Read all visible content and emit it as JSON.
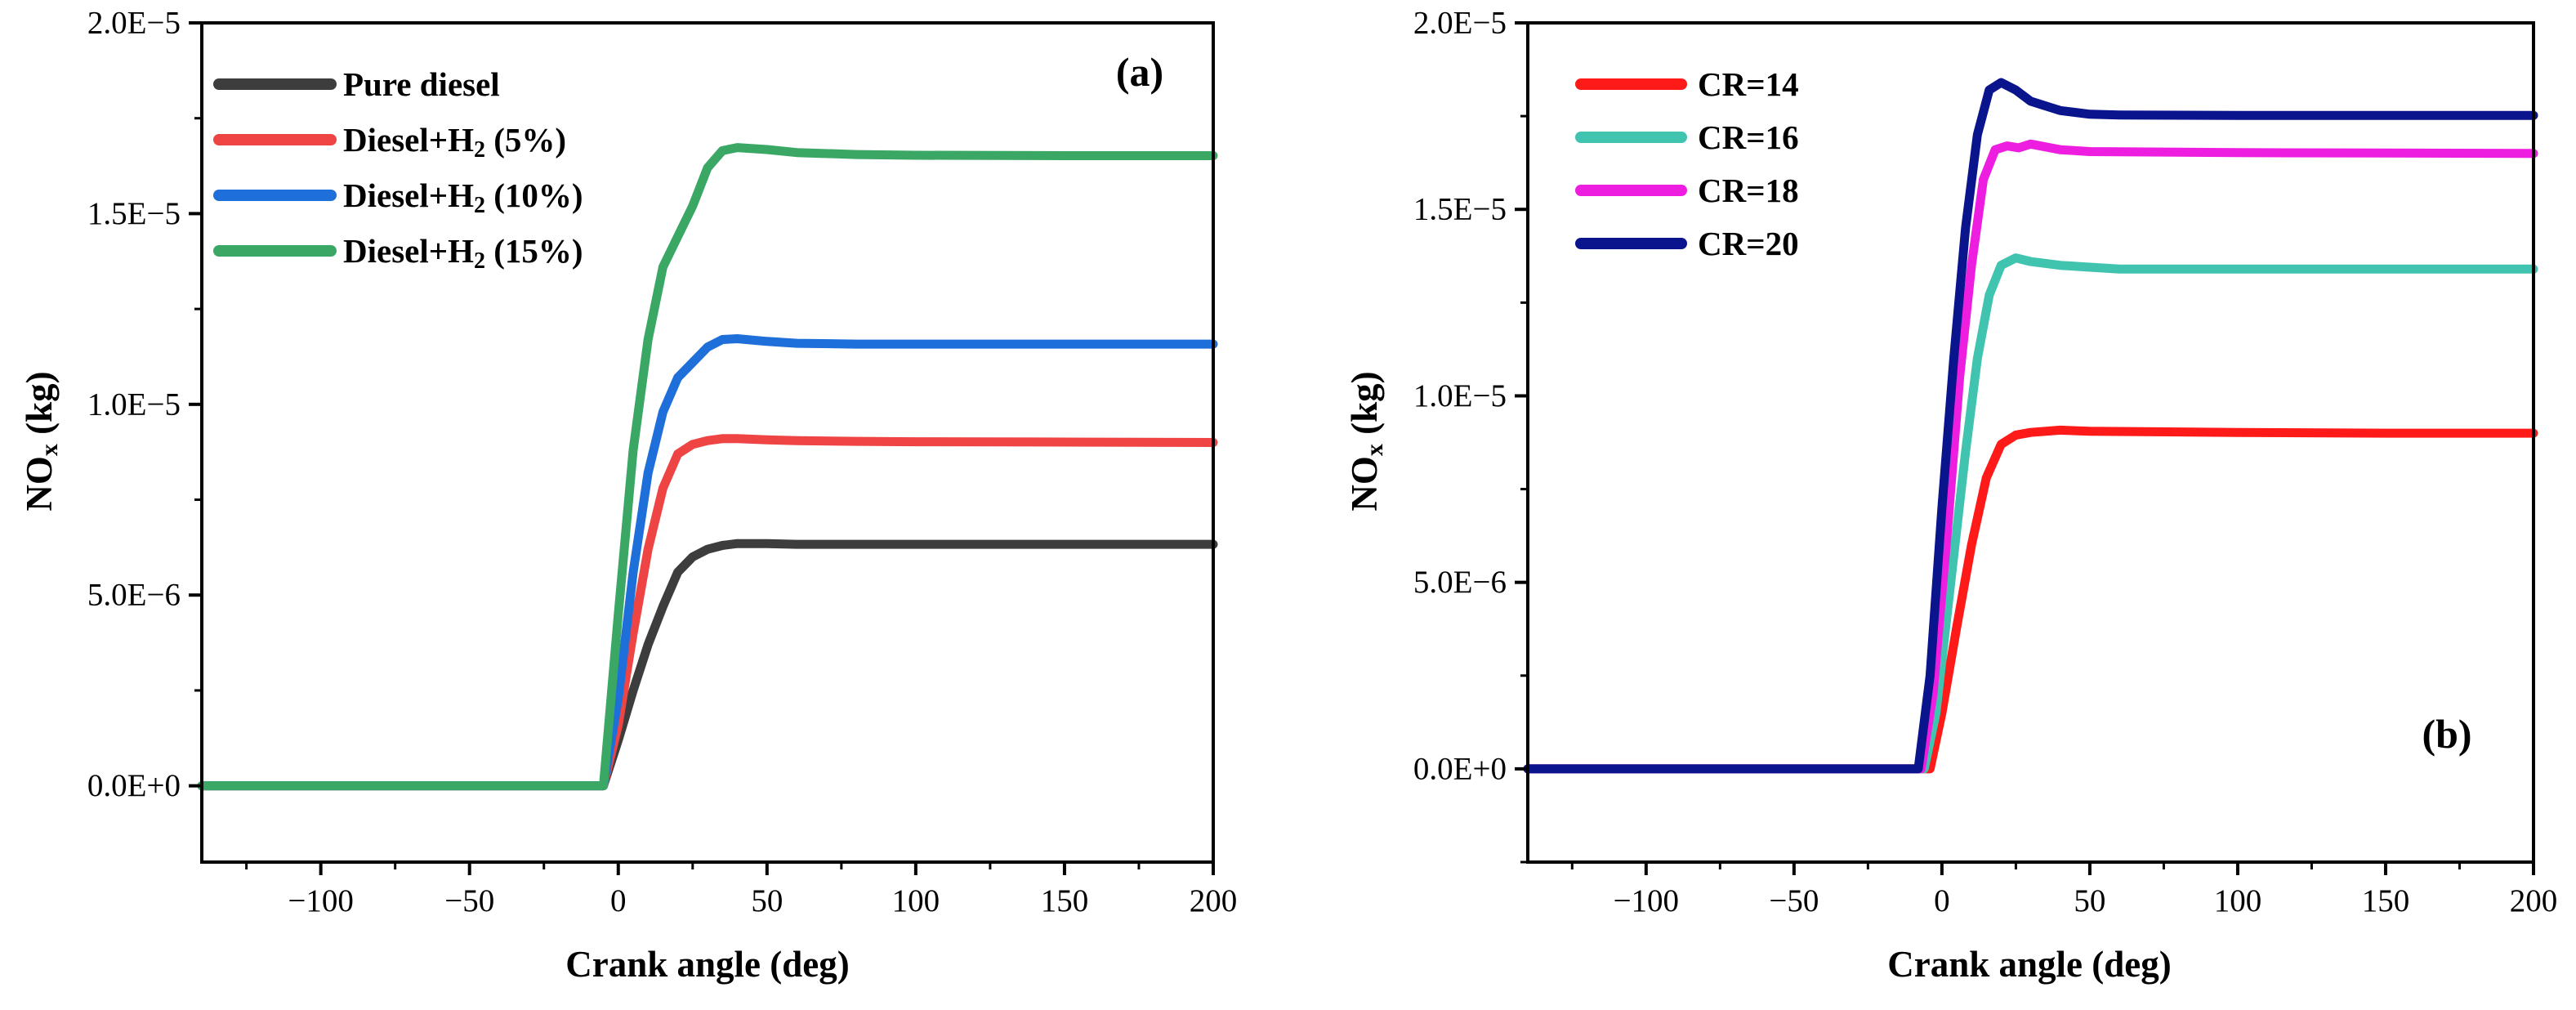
{
  "chart_data": [
    {
      "type": "line",
      "panel_label": "(a)",
      "xlabel": "Crank angle (deg)",
      "ylabel": {
        "main": "NO",
        "sub": "x",
        "unit": " (kg)"
      },
      "xlim": [
        -140,
        200
      ],
      "ylim": [
        -2e-06,
        2e-05
      ],
      "x_ticks": [
        -100,
        -50,
        0,
        50,
        100,
        150,
        200
      ],
      "x_tick_labels": [
        "−100",
        "−50",
        "0",
        "50",
        "100",
        "150",
        "200"
      ],
      "y_ticks": [
        0,
        5e-06,
        1e-05,
        1.5e-05,
        2e-05
      ],
      "y_tick_labels": [
        "0.0E+0",
        "5.0E−6",
        "1.0E−5",
        "1.5E−5",
        "2.0E−5"
      ],
      "legend_position": "top-left",
      "series": [
        {
          "name": "Pure diesel",
          "legend": {
            "pre": "Pure diesel"
          },
          "color": "#3d3d3d",
          "x": [
            -140,
            -5,
            0,
            5,
            10,
            15,
            20,
            25,
            30,
            35,
            40,
            50,
            60,
            80,
            100,
            150,
            200
          ],
          "y": [
            0,
            0,
            1.2e-06,
            2.5e-06,
            3.7e-06,
            4.7e-06,
            5.6e-06,
            6e-06,
            6.2e-06,
            6.3e-06,
            6.35e-06,
            6.35e-06,
            6.33e-06,
            6.33e-06,
            6.33e-06,
            6.33e-06,
            6.33e-06
          ]
        },
        {
          "name": "Diesel+H2 (5%)",
          "legend": {
            "pre": "Diesel+H",
            "sub": "2",
            "post": " (5%)"
          },
          "color": "#ef4444",
          "x": [
            -140,
            -5,
            0,
            5,
            10,
            15,
            20,
            25,
            30,
            35,
            40,
            50,
            60,
            80,
            100,
            150,
            200
          ],
          "y": [
            0,
            0,
            1.6e-06,
            4e-06,
            6.2e-06,
            7.8e-06,
            8.7e-06,
            8.95e-06,
            9.05e-06,
            9.1e-06,
            9.1e-06,
            9.07e-06,
            9.05e-06,
            9.03e-06,
            9.02e-06,
            9.01e-06,
            9e-06
          ]
        },
        {
          "name": "Diesel+H2 (10%)",
          "legend": {
            "pre": "Diesel+H",
            "sub": "2",
            "post": " (10%)"
          },
          "color": "#1e6fd9",
          "x": [
            -140,
            -5,
            0,
            5,
            10,
            15,
            20,
            25,
            30,
            35,
            40,
            50,
            60,
            80,
            100,
            150,
            200
          ],
          "y": [
            0,
            0,
            2.3e-06,
            5.6e-06,
            8.2e-06,
            9.8e-06,
            1.07e-05,
            1.11e-05,
            1.15e-05,
            1.17e-05,
            1.172e-05,
            1.165e-05,
            1.16e-05,
            1.158e-05,
            1.158e-05,
            1.158e-05,
            1.158e-05
          ]
        },
        {
          "name": "Diesel+H2 (15%)",
          "legend": {
            "pre": "Diesel+H",
            "sub": "2",
            "post": " (15%)"
          },
          "color": "#3aa864",
          "x": [
            -140,
            -5,
            0,
            5,
            10,
            15,
            20,
            25,
            30,
            35,
            40,
            50,
            60,
            80,
            100,
            150,
            200
          ],
          "y": [
            0,
            0,
            4.5e-06,
            8.8e-06,
            1.17e-05,
            1.36e-05,
            1.44e-05,
            1.52e-05,
            1.62e-05,
            1.665e-05,
            1.673e-05,
            1.668e-05,
            1.66e-05,
            1.655e-05,
            1.653e-05,
            1.652e-05,
            1.652e-05
          ]
        }
      ]
    },
    {
      "type": "line",
      "panel_label": "(b)",
      "xlabel": "Crank angle (deg)",
      "ylabel": {
        "main": "NO",
        "sub": "x",
        "unit": " (kg)"
      },
      "xlim": [
        -140,
        200
      ],
      "ylim": [
        -2.5e-06,
        2e-05
      ],
      "x_ticks": [
        -100,
        -50,
        0,
        50,
        100,
        150,
        200
      ],
      "x_tick_labels": [
        "−100",
        "−50",
        "0",
        "50",
        "100",
        "150",
        "200"
      ],
      "y_ticks": [
        0,
        5e-06,
        1e-05,
        1.5e-05,
        2e-05
      ],
      "y_tick_labels": [
        "0.0E+0",
        "5.0E−6",
        "1.0E−5",
        "1.5E−5",
        "2.0E−5"
      ],
      "legend_position": "top-left",
      "series": [
        {
          "name": "CR=14",
          "legend": {
            "pre": "CR=14"
          },
          "color": "#ff1a1a",
          "x": [
            -140,
            -4,
            0,
            5,
            10,
            15,
            20,
            25,
            30,
            40,
            50,
            100,
            150,
            200
          ],
          "y": [
            0,
            0,
            1.5e-06,
            3.8e-06,
            6e-06,
            7.8e-06,
            8.7e-06,
            8.95e-06,
            9.02e-06,
            9.08e-06,
            9.05e-06,
            9.02e-06,
            9e-06,
            9e-06
          ]
        },
        {
          "name": "CR=16",
          "legend": {
            "pre": "CR=16"
          },
          "color": "#40c4b0",
          "x": [
            -140,
            -6,
            -2,
            3,
            8,
            12,
            16,
            20,
            25,
            30,
            40,
            50,
            60,
            100,
            200
          ],
          "y": [
            0,
            0,
            1.5e-06,
            5e-06,
            8.5e-06,
            1.1e-05,
            1.27e-05,
            1.35e-05,
            1.37e-05,
            1.36e-05,
            1.35e-05,
            1.345e-05,
            1.34e-05,
            1.34e-05,
            1.34e-05
          ]
        },
        {
          "name": "CR=18",
          "legend": {
            "pre": "CR=18"
          },
          "color": "#ee1ee0",
          "x": [
            -140,
            -7,
            -3,
            2,
            6,
            10,
            14,
            18,
            22,
            26,
            30,
            40,
            50,
            100,
            200
          ],
          "y": [
            0,
            0,
            2e-06,
            6.5e-06,
            1.05e-05,
            1.35e-05,
            1.58e-05,
            1.66e-05,
            1.67e-05,
            1.665e-05,
            1.675e-05,
            1.66e-05,
            1.655e-05,
            1.652e-05,
            1.65e-05
          ]
        },
        {
          "name": "CR=20",
          "legend": {
            "pre": "CR=20"
          },
          "color": "#0a148c",
          "x": [
            -140,
            -8,
            -4,
            0,
            4,
            8,
            12,
            16,
            20,
            25,
            30,
            40,
            50,
            60,
            100,
            200
          ],
          "y": [
            0,
            0,
            2.5e-06,
            7e-06,
            1.1e-05,
            1.45e-05,
            1.7e-05,
            1.82e-05,
            1.84e-05,
            1.82e-05,
            1.79e-05,
            1.765e-05,
            1.755e-05,
            1.753e-05,
            1.752e-05,
            1.752e-05
          ]
        }
      ]
    }
  ]
}
